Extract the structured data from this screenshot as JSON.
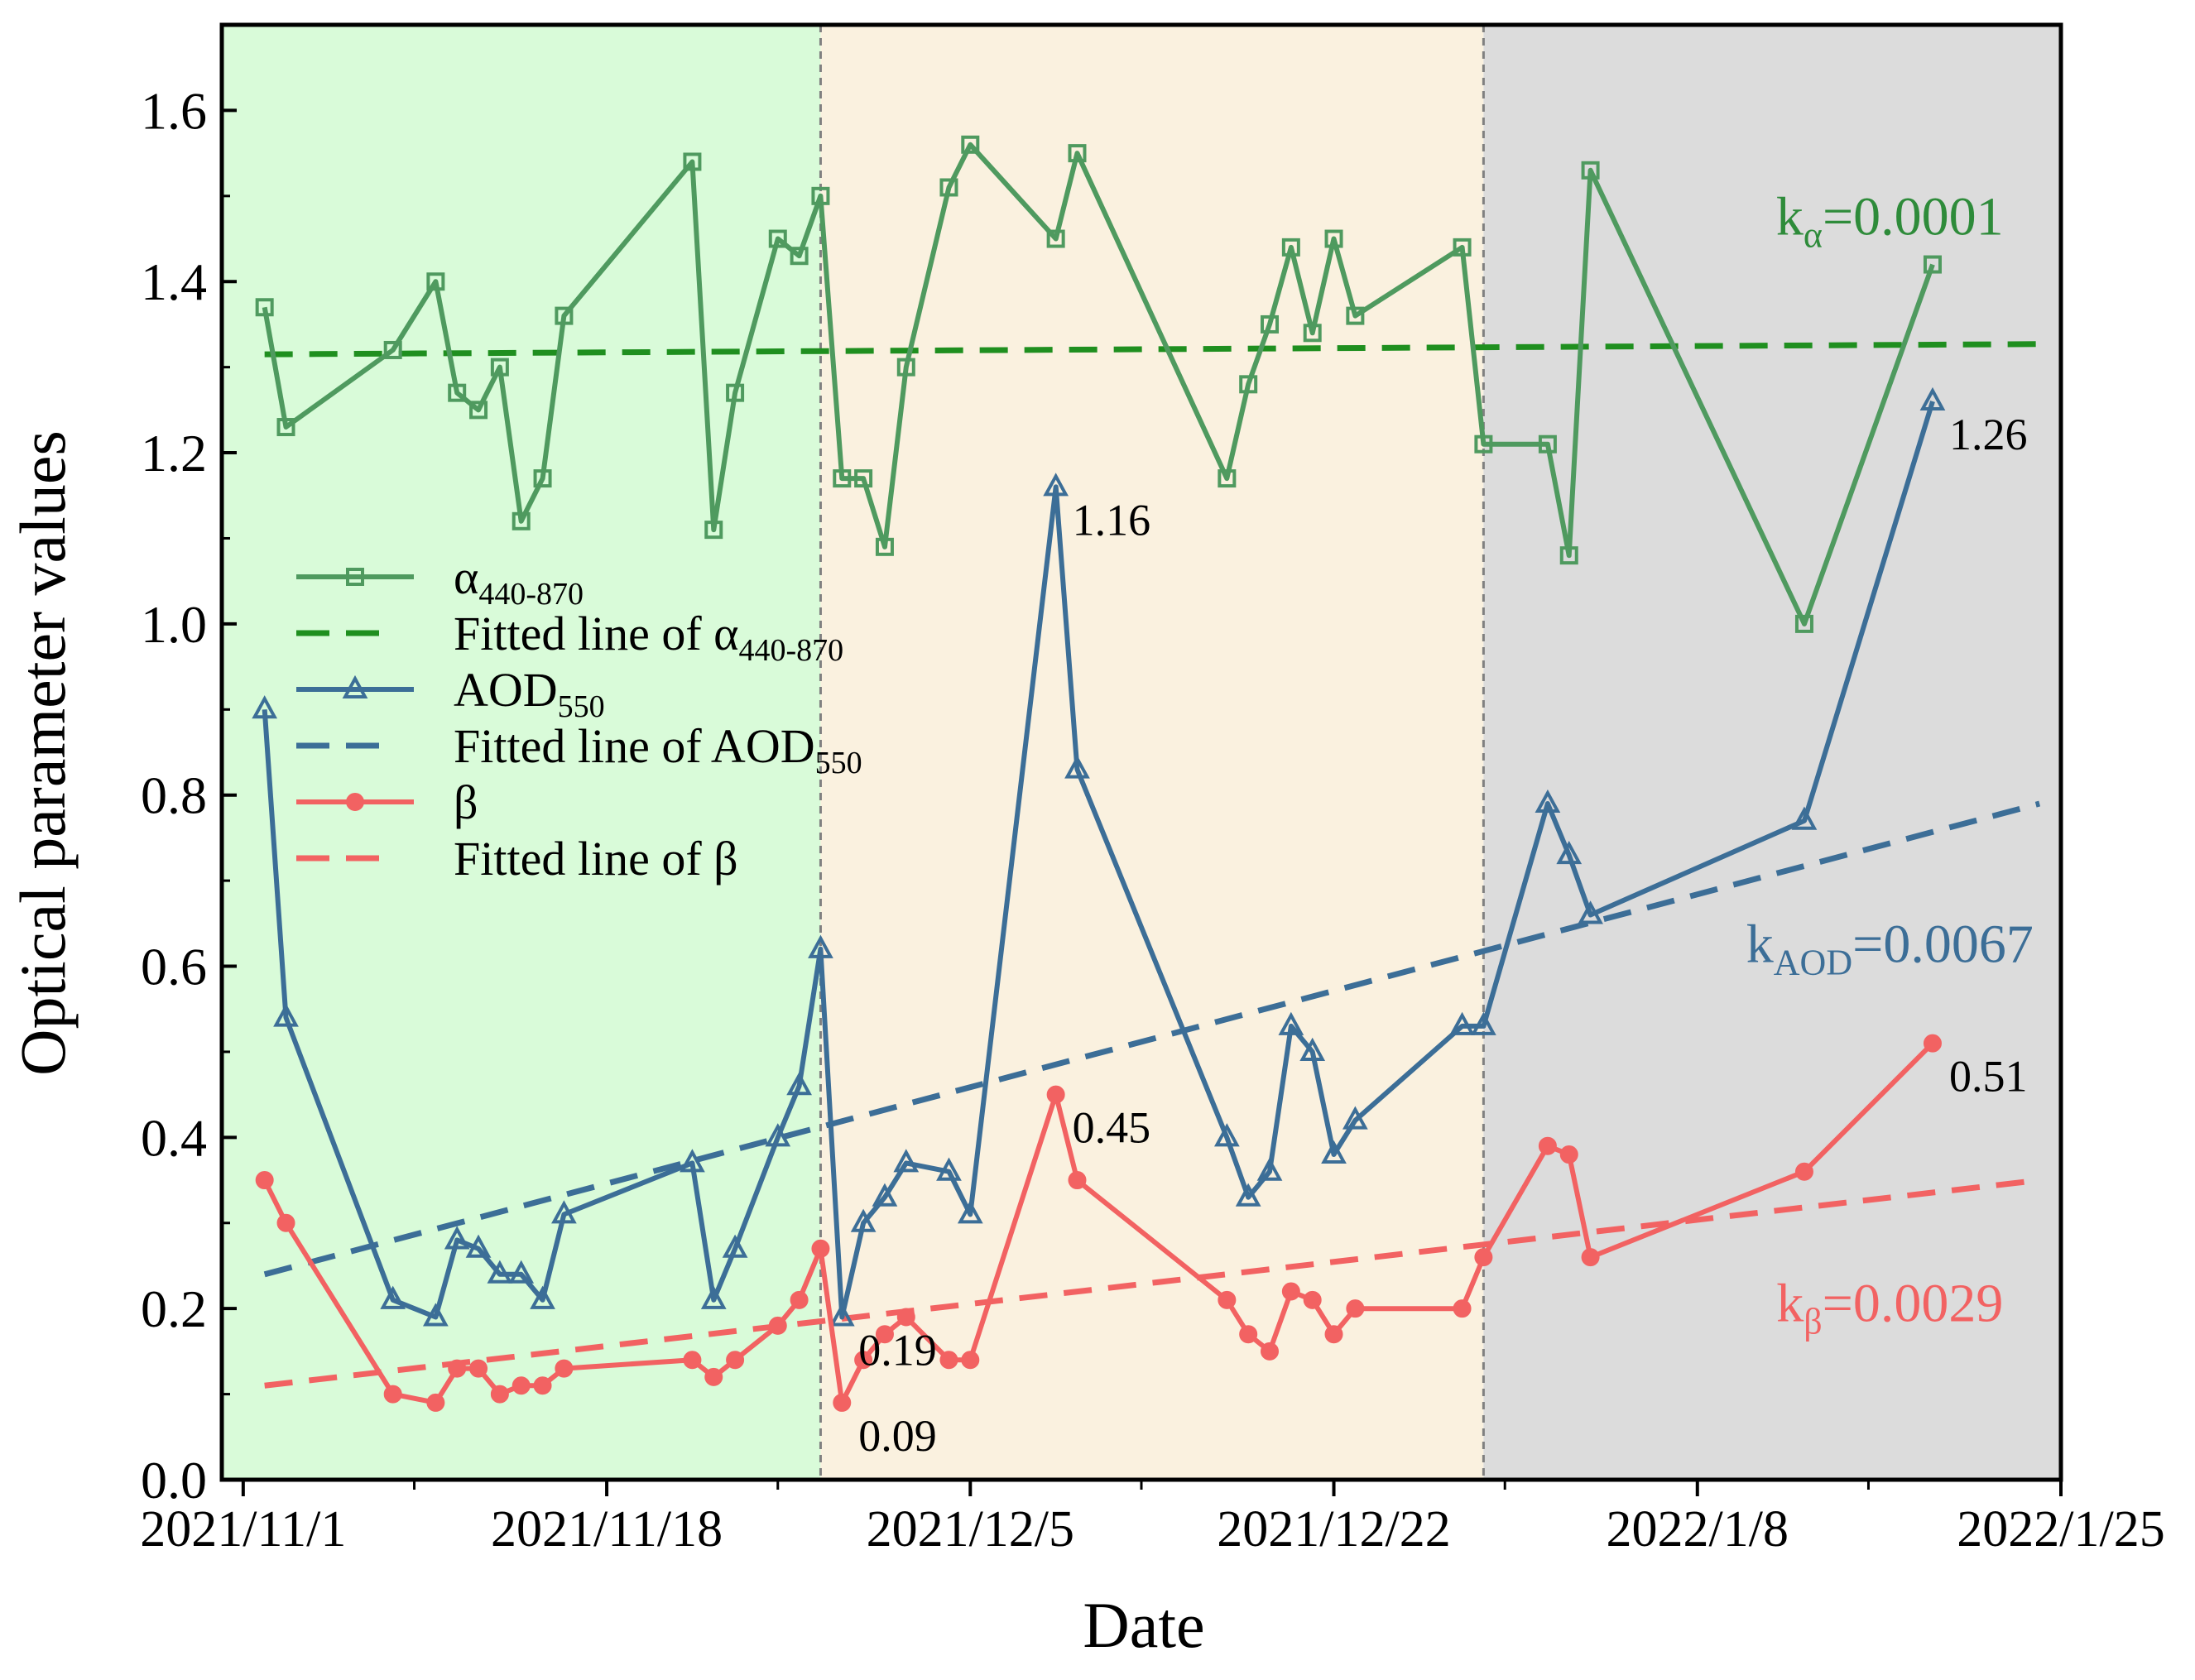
{
  "chart_data": {
    "type": "line",
    "xlabel": "Date",
    "ylabel": "Optical parameter values",
    "xlim": [
      "2021-10-31",
      "2022-01-25"
    ],
    "ylim": [
      0.0,
      1.7
    ],
    "x_ticks": [
      "2021/11/1",
      "2021/11/18",
      "2021/12/5",
      "2021/12/22",
      "2022/1/8",
      "2022/1/25"
    ],
    "x_tick_dates": [
      "2021-11-01",
      "2021-11-18",
      "2021-12-05",
      "2021-12-22",
      "2022-01-08",
      "2022-01-25"
    ],
    "x_minor_tick_dates": [
      "2021-11-09",
      "2021-11-26",
      "2021-12-13",
      "2021-12-30",
      "2022-01-16"
    ],
    "y_ticks": [
      "0.0",
      "0.2",
      "0.4",
      "0.6",
      "0.8",
      "1.0",
      "1.2",
      "1.4",
      "1.6"
    ],
    "grid": false,
    "legend_position": "middle-left",
    "periods": [
      {
        "start": "2021-10-31",
        "end": "2021-11-28",
        "color": "#d9fbd9"
      },
      {
        "start": "2021-11-28",
        "end": "2021-12-29",
        "color": "#faf1df"
      },
      {
        "start": "2021-12-29",
        "end": "2022-01-25",
        "color": "#dcdcdc"
      }
    ],
    "period_divider_color": "#808080",
    "dates": [
      "2021-11-02",
      "2021-11-03",
      "2021-11-08",
      "2021-11-10",
      "2021-11-11",
      "2021-11-12",
      "2021-11-13",
      "2021-11-14",
      "2021-11-15",
      "2021-11-16",
      "2021-11-22",
      "2021-11-23",
      "2021-11-24",
      "2021-11-26",
      "2021-11-27",
      "2021-11-28",
      "2021-11-29",
      "2021-11-30",
      "2021-12-01",
      "2021-12-02",
      "2021-12-04",
      "2021-12-05",
      "2021-12-09",
      "2021-12-10",
      "2021-12-17",
      "2021-12-18",
      "2021-12-19",
      "2021-12-20",
      "2021-12-21",
      "2021-12-22",
      "2021-12-23",
      "2021-12-28",
      "2021-12-29",
      "2022-01-01",
      "2022-01-02",
      "2022-01-03",
      "2022-01-13",
      "2022-01-19"
    ],
    "series": [
      {
        "name": "α440-870",
        "color": "#4f9a5f",
        "marker": "square",
        "values": [
          1.37,
          1.23,
          1.32,
          1.4,
          1.27,
          1.25,
          1.3,
          1.12,
          1.17,
          1.36,
          1.54,
          1.11,
          1.27,
          1.45,
          1.43,
          1.5,
          1.17,
          1.17,
          1.09,
          1.3,
          1.51,
          1.56,
          1.45,
          1.55,
          1.17,
          1.28,
          1.35,
          1.44,
          1.34,
          1.45,
          1.36,
          1.44,
          1.21,
          1.21,
          1.08,
          1.53,
          1.0,
          1.42
        ]
      },
      {
        "name": "AOD550",
        "color": "#3c6e97",
        "marker": "triangle",
        "values": [
          0.9,
          0.54,
          0.21,
          0.19,
          0.28,
          0.27,
          0.24,
          0.24,
          0.21,
          0.31,
          0.37,
          0.21,
          0.27,
          0.4,
          0.46,
          0.62,
          0.19,
          0.3,
          0.33,
          0.37,
          0.36,
          0.31,
          1.16,
          0.83,
          0.4,
          0.33,
          0.36,
          0.53,
          0.5,
          0.38,
          0.42,
          0.53,
          0.53,
          0.79,
          0.73,
          0.66,
          0.77,
          1.26
        ]
      },
      {
        "name": "β",
        "color": "#f26262",
        "marker": "circle",
        "values": [
          0.35,
          0.3,
          0.1,
          0.09,
          0.13,
          0.13,
          0.1,
          0.11,
          0.11,
          0.13,
          0.14,
          0.12,
          0.14,
          0.18,
          0.21,
          0.27,
          0.09,
          0.14,
          0.17,
          0.19,
          0.14,
          0.14,
          0.45,
          0.35,
          0.21,
          0.17,
          0.15,
          0.22,
          0.21,
          0.17,
          0.2,
          0.2,
          0.26,
          0.39,
          0.38,
          0.26,
          0.36,
          0.51
        ]
      }
    ],
    "fitted_lines": [
      {
        "name": "Fitted line of α440-870",
        "color": "#1f8f1f",
        "start": {
          "x": "2021-11-02",
          "y": 1.315
        },
        "end": {
          "x": "2022-01-24",
          "y": 1.327
        }
      },
      {
        "name": "Fitted line of AOD550",
        "color": "#3c6e97",
        "start": {
          "x": "2021-11-02",
          "y": 0.24
        },
        "end": {
          "x": "2022-01-24",
          "y": 0.79
        }
      },
      {
        "name": "Fitted line of β",
        "color": "#f26262",
        "start": {
          "x": "2021-11-02",
          "y": 0.11
        },
        "end": {
          "x": "2022-01-24",
          "y": 0.35
        }
      }
    ],
    "point_labels": [
      {
        "text": "1.16",
        "x": "2021-12-09",
        "y": 1.16,
        "series": 1
      },
      {
        "text": "1.26",
        "x": "2022-01-19",
        "y": 1.26,
        "series": 1
      },
      {
        "text": "0.19",
        "x": "2021-11-29",
        "y": 0.19,
        "series": 1
      },
      {
        "text": "0.45",
        "x": "2021-12-09",
        "y": 0.45,
        "series": 2
      },
      {
        "text": "0.51",
        "x": "2022-01-19",
        "y": 0.51,
        "series": 2
      },
      {
        "text": "0.09",
        "x": "2021-11-29",
        "y": 0.09,
        "series": 2
      }
    ],
    "annotations": [
      {
        "base": "k",
        "sub": "α",
        "rest": "=0.0001",
        "color": "#2e8b3a",
        "x": "2022-01-17",
        "y": 1.455
      },
      {
        "base": "k",
        "sub": "AOD",
        "rest": "=0.0067",
        "color": "#3c6e97",
        "x": "2022-01-17",
        "y": 0.605
      },
      {
        "base": "k",
        "sub": "β",
        "rest": "=0.0029",
        "color": "#f26262",
        "x": "2022-01-17",
        "y": 0.185
      }
    ],
    "legend": [
      {
        "label": "α",
        "sub": "440-870",
        "style": "line",
        "marker": "square",
        "color": "#4f9a5f"
      },
      {
        "label": "Fitted line of α",
        "sub": "440-870",
        "style": "dash",
        "color": "#1f8f1f"
      },
      {
        "label": "AOD",
        "sub": "550",
        "style": "line",
        "marker": "triangle",
        "color": "#3c6e97"
      },
      {
        "label": "Fitted line of AOD",
        "sub": "550",
        "style": "dash",
        "color": "#3c6e97"
      },
      {
        "label": "β",
        "sub": "",
        "style": "line",
        "marker": "circle",
        "color": "#f26262"
      },
      {
        "label": "Fitted line of β",
        "sub": "",
        "style": "dash",
        "color": "#f26262"
      }
    ]
  }
}
